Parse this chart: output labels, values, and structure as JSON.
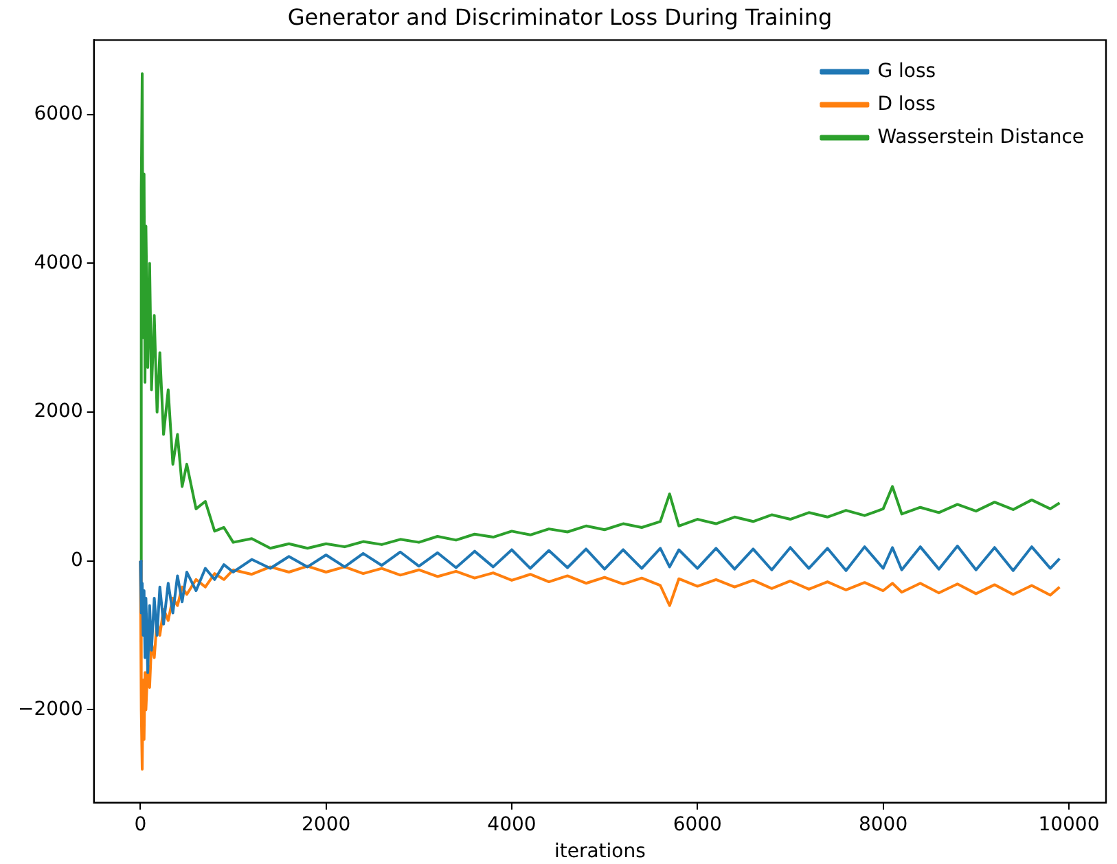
{
  "chart_data": {
    "type": "line",
    "title": "Generator and Discriminator Loss During Training",
    "xlabel": "iterations",
    "x": [
      0,
      10,
      20,
      30,
      40,
      50,
      60,
      80,
      100,
      120,
      150,
      180,
      210,
      250,
      300,
      350,
      400,
      450,
      500,
      600,
      700,
      800,
      900,
      1000,
      1200,
      1400,
      1600,
      1800,
      2000,
      2200,
      2400,
      2600,
      2800,
      3000,
      3200,
      3400,
      3600,
      3800,
      4000,
      4200,
      4400,
      4600,
      4800,
      5000,
      5200,
      5400,
      5600,
      5700,
      5800,
      6000,
      6200,
      6400,
      6600,
      6800,
      7000,
      7200,
      7400,
      7600,
      7800,
      8000,
      8100,
      8200,
      8400,
      8600,
      8800,
      9000,
      9200,
      9400,
      9600,
      9800,
      9900
    ],
    "series": [
      {
        "name": "G loss",
        "color": "#1f77b4",
        "values": [
          0,
          -700,
          -300,
          -1000,
          -400,
          -1300,
          -500,
          -1500,
          -600,
          -1200,
          -500,
          -1000,
          -350,
          -850,
          -300,
          -700,
          -200,
          -550,
          -150,
          -400,
          -100,
          -250,
          -50,
          -150,
          20,
          -100,
          60,
          -80,
          80,
          -80,
          100,
          -60,
          120,
          -70,
          110,
          -90,
          130,
          -80,
          150,
          -100,
          140,
          -90,
          160,
          -110,
          150,
          -100,
          170,
          -80,
          150,
          -100,
          170,
          -110,
          160,
          -120,
          180,
          -100,
          170,
          -130,
          190,
          -100,
          180,
          -120,
          190,
          -110,
          200,
          -120,
          180,
          -130,
          190,
          -100,
          30
        ]
      },
      {
        "name": "D loss",
        "color": "#ff7f0e",
        "values": [
          0,
          -2000,
          -2800,
          -1600,
          -2400,
          -1500,
          -2000,
          -1400,
          -1700,
          -1100,
          -1300,
          -800,
          -1000,
          -650,
          -800,
          -500,
          -600,
          -350,
          -450,
          -250,
          -350,
          -170,
          -250,
          -120,
          -180,
          -80,
          -150,
          -70,
          -150,
          -80,
          -170,
          -100,
          -190,
          -120,
          -210,
          -140,
          -230,
          -160,
          -260,
          -180,
          -280,
          -200,
          -300,
          -220,
          -310,
          -230,
          -330,
          -600,
          -240,
          -340,
          -250,
          -350,
          -260,
          -370,
          -270,
          -380,
          -280,
          -390,
          -290,
          -400,
          -300,
          -420,
          -300,
          -430,
          -310,
          -440,
          -320,
          -450,
          -330,
          -460,
          -350
        ]
      },
      {
        "name": "Wasserstein Distance",
        "color": "#2ca02c",
        "values": [
          0,
          5000,
          6550,
          3000,
          5200,
          2400,
          4500,
          2600,
          4000,
          2300,
          3300,
          2000,
          2800,
          1700,
          2300,
          1300,
          1700,
          1000,
          1300,
          700,
          800,
          400,
          450,
          250,
          300,
          170,
          230,
          170,
          230,
          190,
          260,
          220,
          290,
          250,
          330,
          280,
          360,
          320,
          400,
          350,
          430,
          390,
          470,
          420,
          500,
          450,
          530,
          900,
          470,
          560,
          500,
          590,
          530,
          620,
          560,
          650,
          590,
          680,
          610,
          700,
          1000,
          630,
          720,
          650,
          760,
          670,
          790,
          690,
          820,
          700,
          780
        ]
      }
    ],
    "xlim": [
      -500,
      10400
    ],
    "xticks": [
      0,
      2000,
      4000,
      6000,
      8000,
      10000
    ],
    "ylim": [
      -3250,
      7000
    ],
    "yticks": [
      {
        "value": -2000,
        "label": "−2000"
      },
      0,
      2000,
      4000,
      6000
    ],
    "grid": false,
    "legend": "top right",
    "marker": "none",
    "line_style": "solid"
  }
}
